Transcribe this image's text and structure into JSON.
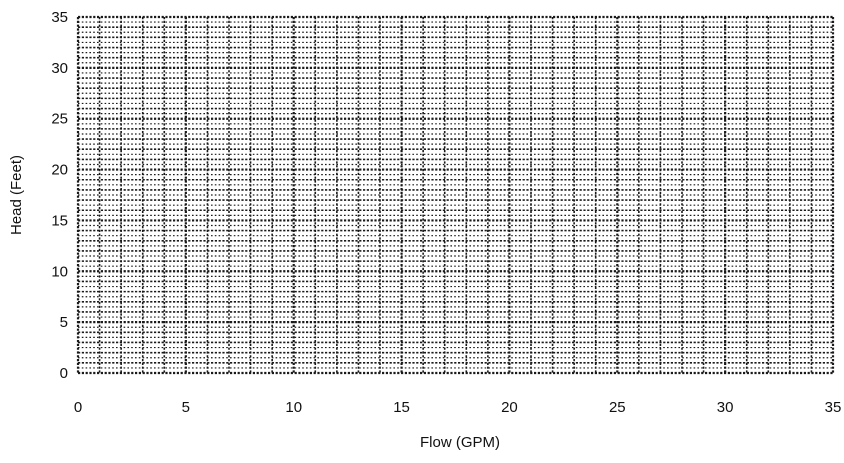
{
  "chart_data": {
    "type": "line",
    "title": "",
    "xlabel": "Flow (GPM)",
    "ylabel": "Head (Feet)",
    "xlim": [
      0,
      35
    ],
    "ylim": [
      0,
      35
    ],
    "x_ticks": [
      0,
      5,
      10,
      15,
      20,
      25,
      30,
      35
    ],
    "y_ticks": [
      0,
      5,
      10,
      15,
      20,
      25,
      30,
      35
    ],
    "x_tick_labels": [
      "0",
      "5",
      "10",
      "15",
      "20",
      "25",
      "30",
      "35"
    ],
    "y_tick_labels": [
      "0",
      "5",
      "10",
      "15",
      "20",
      "25",
      "30",
      "35"
    ],
    "grid": true,
    "grid_style": "dotted",
    "grid_minor_step": 1,
    "series": [],
    "colors": {
      "grid": "#1a1a1a",
      "text": "#111111",
      "background": "#ffffff"
    }
  }
}
